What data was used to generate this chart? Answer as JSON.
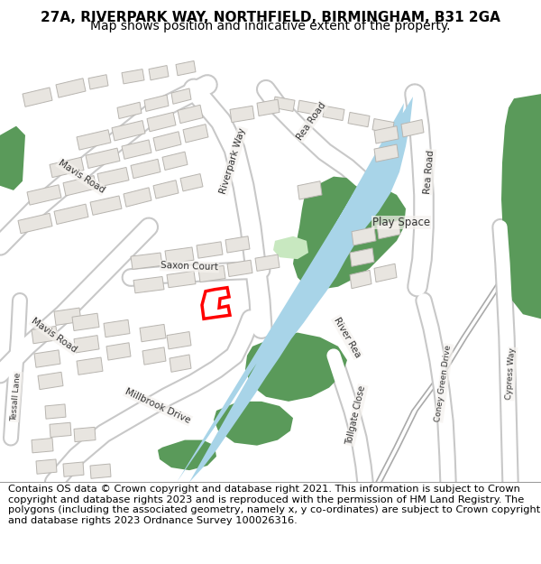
{
  "title_line1": "27A, RIVERPARK WAY, NORTHFIELD, BIRMINGHAM, B31 2GA",
  "title_line2": "Map shows position and indicative extent of the property.",
  "footer": "Contains OS data © Crown copyright and database right 2021. This information is subject to Crown copyright and database rights 2023 and is reproduced with the permission of HM Land Registry. The polygons (including the associated geometry, namely x, y co-ordinates) are subject to Crown copyright and database rights 2023 Ordnance Survey 100026316.",
  "bg_color": "#f5f2ee",
  "road_color": "#ffffff",
  "road_border": "#c8c8c8",
  "building_color": "#e8e5e0",
  "building_border": "#b8b5b0",
  "green_dark": "#5a9a5a",
  "green_light": "#c8e8c0",
  "water_color": "#a8d4e8",
  "plot_color": "#ff0000",
  "title_fontsize": 11,
  "subtitle_fontsize": 10,
  "footer_fontsize": 8.2,
  "label_fontsize": 7.5,
  "label_color": "#333333"
}
